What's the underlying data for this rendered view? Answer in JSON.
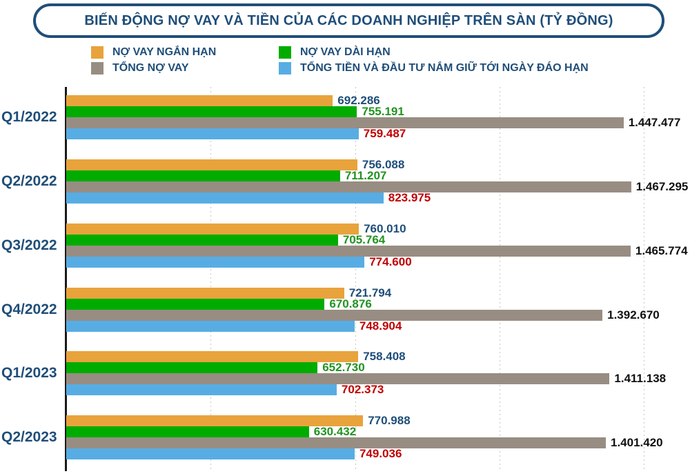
{
  "title": "BIẾN ĐỘNG NỢ VAY VÀ TIỀN CỦA CÁC DOANH NGHIỆP TRÊN SÀN (TỶ ĐỒNG)",
  "colors": {
    "navy": "#1F4E79",
    "axis": "#1a1a1a",
    "gridline": "#c6c6c6",
    "background": "#ffffff"
  },
  "chart_data": {
    "type": "bar",
    "orientation": "horizontal",
    "title": "BIẾN ĐỘNG NỢ VAY VÀ TIỀN CỦA CÁC DOANH NGHIỆP TRÊN SÀN (TỶ ĐỒNG)",
    "categories": [
      "Q1/2022",
      "Q2/2022",
      "Q3/2022",
      "Q4/2022",
      "Q1/2023",
      "Q2/2023"
    ],
    "series": [
      {
        "name": "NỢ VAY NGẮN HẠN",
        "color": "#E8A33C",
        "label_color": "#1F4E79",
        "values": [
          692286,
          756088,
          760010,
          721794,
          758408,
          770988
        ],
        "labels": [
          "692.286",
          "756.088",
          "760.010",
          "721.794",
          "758.408",
          "770.988"
        ]
      },
      {
        "name": "NỢ VAY DÀI HẠN",
        "color": "#00AC00",
        "label_color": "#219321",
        "values": [
          755191,
          711207,
          705764,
          670876,
          652730,
          630432
        ],
        "labels": [
          "755.191",
          "711.207",
          "705.764",
          "670.876",
          "652.730",
          "630.432"
        ]
      },
      {
        "name": "TỔNG NỢ VAY",
        "color": "#988D83",
        "label_color": "#111111",
        "values": [
          1447477,
          1467295,
          1465774,
          1392670,
          1411138,
          1401420
        ],
        "labels": [
          "1.447.477",
          "1.467.295",
          "1.465.774",
          "1.392.670",
          "1.411.138",
          "1.401.420"
        ]
      },
      {
        "name": "TỔNG TIỀN VÀ ĐẦU TƯ NẮM GIỮ TỚI NGÀY ĐÁO HẠN",
        "color": "#57ADE3",
        "label_color": "#C00000",
        "values": [
          759487,
          823975,
          774600,
          748904,
          702373,
          749036
        ],
        "labels": [
          "759.487",
          "823.975",
          "774.600",
          "748.904",
          "702.373",
          "749.036"
        ]
      }
    ],
    "xlim": [
      0,
      1500000
    ],
    "gridline_values": [
      375000,
      750000,
      1125000,
      1500000
    ],
    "gridline_style": "dotted",
    "legend_position": "top",
    "legend_rows": [
      [
        "NỢ VAY NGẮN HẠN",
        "NỢ VAY DÀI HẠN"
      ],
      [
        "TỔNG NỢ VAY",
        "TỔNG TIỀN VÀ ĐẦU TƯ NẮM GIỮ TỚI NGÀY ĐÁO HẠN"
      ]
    ]
  }
}
